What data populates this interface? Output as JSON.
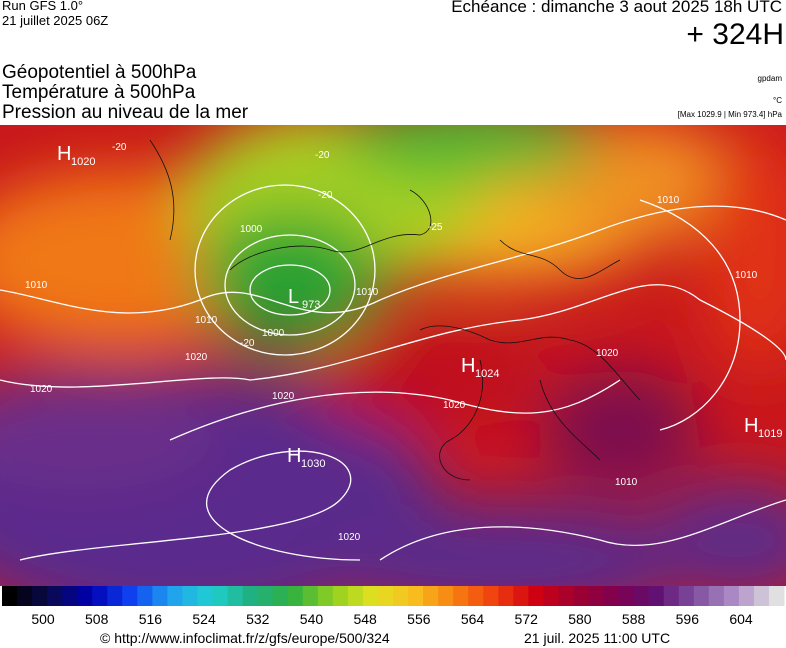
{
  "header": {
    "run": "Run GFS 1.0°",
    "date": "21 juillet 2025 06Z",
    "echeance": "Echéance : dimanche 3 aout 2025 18h UTC",
    "horizon": "+ 324H"
  },
  "titles": [
    "Géopotentiel à 500hPa",
    "Température à 500hPa",
    "Pression au niveau de la mer"
  ],
  "units": {
    "geopotential": "gpdam",
    "temperature": "°C",
    "pressure": "[Max 1029.9 | Min 973.4] hPa"
  },
  "pressure_centers": [
    {
      "type": "H",
      "value": "1020"
    },
    {
      "type": "L",
      "value": "973"
    },
    {
      "type": "H",
      "value": "1024"
    },
    {
      "type": "H",
      "value": "1030"
    },
    {
      "type": "H",
      "value": "1019"
    }
  ],
  "isobar_labels": [
    "1000",
    "1010",
    "1010",
    "1020",
    "1020",
    "1020",
    "1020",
    "1020",
    "1020",
    "1010",
    "1010",
    "1010",
    "1000",
    "1010",
    "-20",
    "-20",
    "-20",
    "-20",
    "-25"
  ],
  "colorbar": {
    "labels": [
      500,
      508,
      516,
      524,
      532,
      540,
      548,
      556,
      564,
      572,
      580,
      588,
      596,
      604
    ]
  },
  "footer": {
    "url": "© http://www.infoclimat.fr/z/gfs/europe/500/324",
    "timestamp": "21 juil. 2025 11:00 UTC"
  }
}
